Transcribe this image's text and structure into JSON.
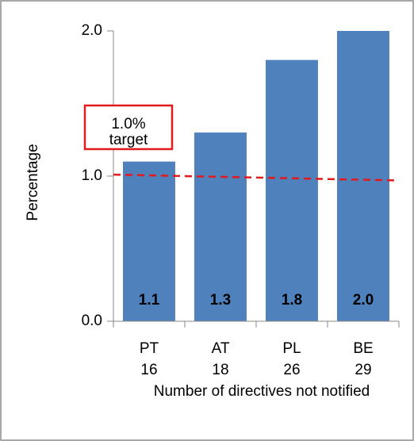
{
  "chart_data": {
    "type": "bar",
    "categories": [
      "PT",
      "AT",
      "PL",
      "BE"
    ],
    "category_counts": [
      16,
      18,
      26,
      29
    ],
    "values": [
      1.1,
      1.3,
      1.8,
      2.0
    ],
    "value_labels": [
      "1.1",
      "1.3",
      "1.8",
      "2.0"
    ],
    "color": "#4f81bd",
    "ylim": [
      0,
      2
    ],
    "yticks": [
      {
        "value": 0,
        "label": "0.0"
      },
      {
        "value": 1,
        "label": "1.0"
      },
      {
        "value": 2,
        "label": "2.0"
      }
    ],
    "ylabel": "Percentage",
    "xlabel": "Number of directives not notified",
    "target_line": {
      "values": [
        1.01,
        0.97
      ],
      "color": "#e31a1c",
      "style": "dashed"
    },
    "annotation": {
      "lines": [
        "1.0%",
        "target"
      ],
      "border_color": "#e31a1c"
    }
  }
}
